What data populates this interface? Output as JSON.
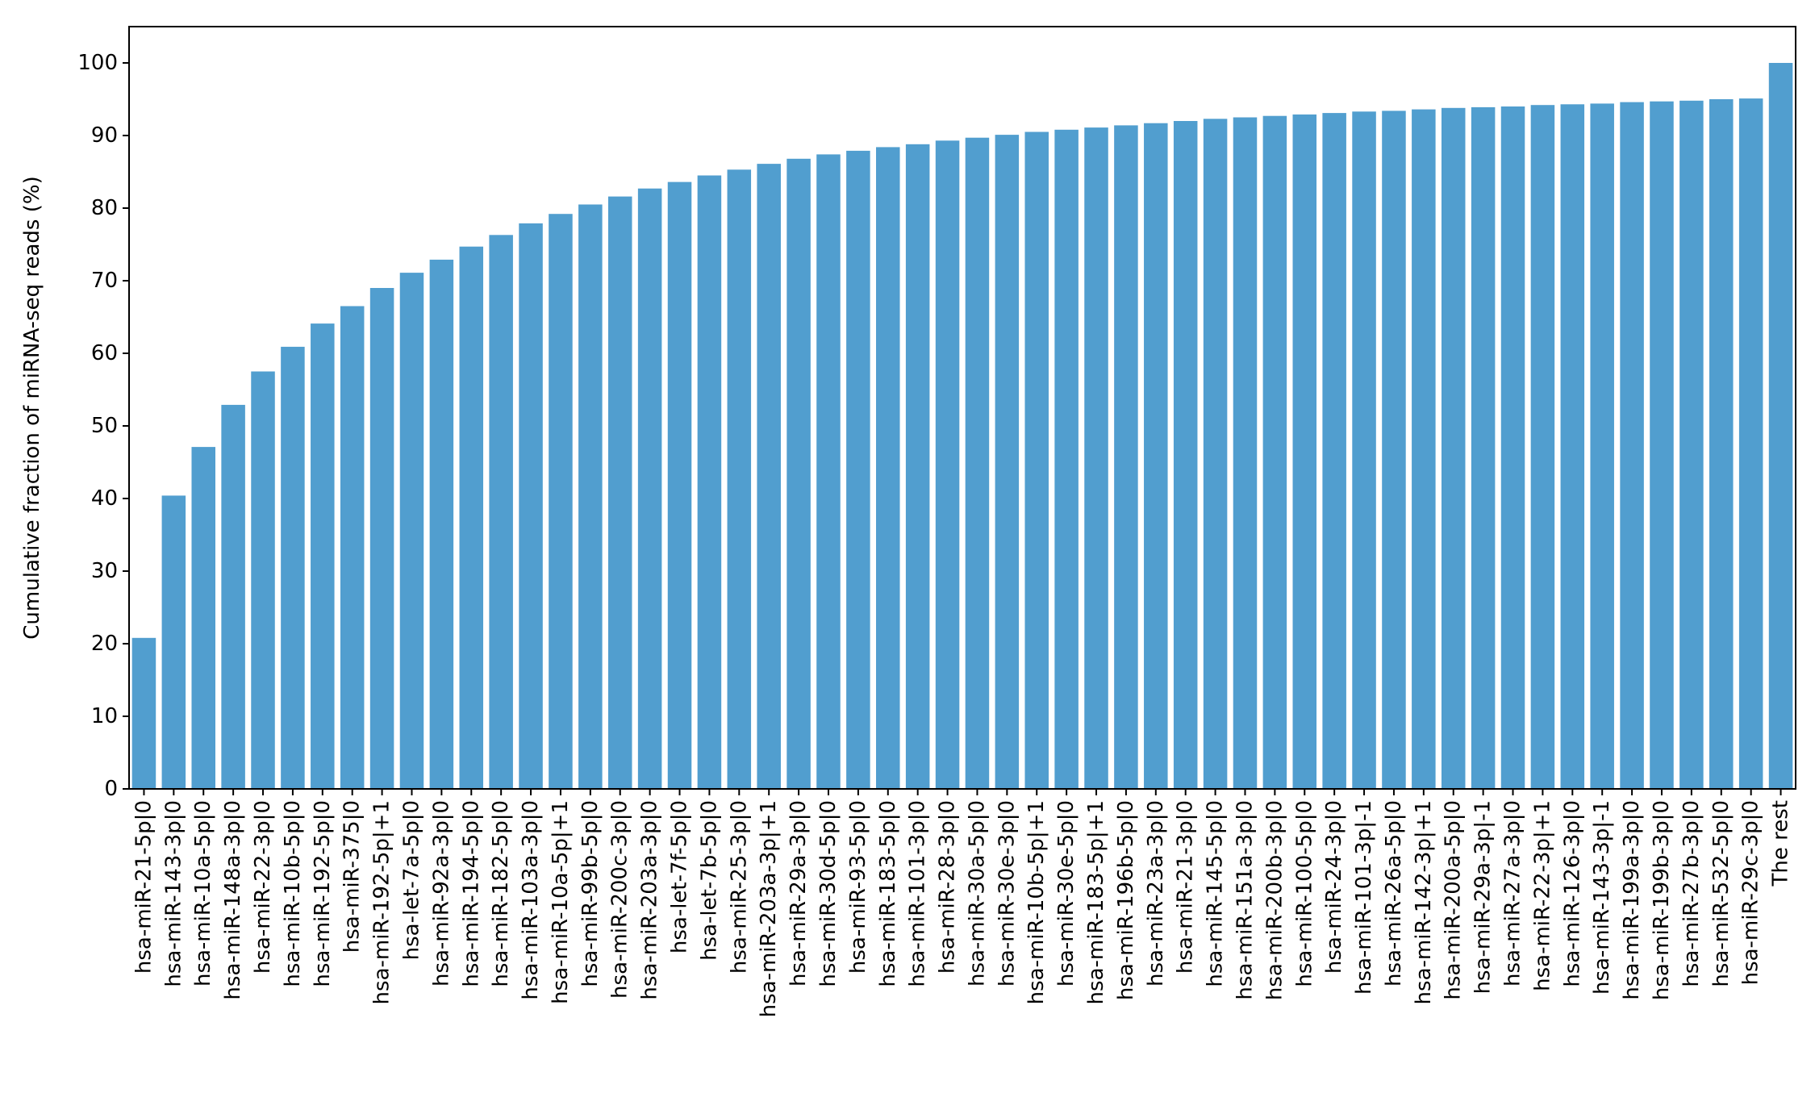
{
  "chart_data": {
    "type": "bar",
    "title": "",
    "xlabel": "",
    "ylabel": "Cumulative fraction of miRNA-seq reads (%)",
    "ylim": [
      0,
      105
    ],
    "yticks": [
      0,
      10,
      20,
      30,
      40,
      50,
      60,
      70,
      80,
      90,
      100
    ],
    "grid": false,
    "bar_color": "#519ecf",
    "categories": [
      "hsa-miR-21-5p|0",
      "hsa-miR-143-3p|0",
      "hsa-miR-10a-5p|0",
      "hsa-miR-148a-3p|0",
      "hsa-miR-22-3p|0",
      "hsa-miR-10b-5p|0",
      "hsa-miR-192-5p|0",
      "hsa-miR-375|0",
      "hsa-miR-192-5p|+1",
      "hsa-let-7a-5p|0",
      "hsa-miR-92a-3p|0",
      "hsa-miR-194-5p|0",
      "hsa-miR-182-5p|0",
      "hsa-miR-103a-3p|0",
      "hsa-miR-10a-5p|+1",
      "hsa-miR-99b-5p|0",
      "hsa-miR-200c-3p|0",
      "hsa-miR-203a-3p|0",
      "hsa-let-7f-5p|0",
      "hsa-let-7b-5p|0",
      "hsa-miR-25-3p|0",
      "hsa-miR-203a-3p|+1",
      "hsa-miR-29a-3p|0",
      "hsa-miR-30d-5p|0",
      "hsa-miR-93-5p|0",
      "hsa-miR-183-5p|0",
      "hsa-miR-101-3p|0",
      "hsa-miR-28-3p|0",
      "hsa-miR-30a-5p|0",
      "hsa-miR-30e-3p|0",
      "hsa-miR-10b-5p|+1",
      "hsa-miR-30e-5p|0",
      "hsa-miR-183-5p|+1",
      "hsa-miR-196b-5p|0",
      "hsa-miR-23a-3p|0",
      "hsa-miR-21-3p|0",
      "hsa-miR-145-5p|0",
      "hsa-miR-151a-3p|0",
      "hsa-miR-200b-3p|0",
      "hsa-miR-100-5p|0",
      "hsa-miR-24-3p|0",
      "hsa-miR-101-3p|-1",
      "hsa-miR-26a-5p|0",
      "hsa-miR-142-3p|+1",
      "hsa-miR-200a-5p|0",
      "hsa-miR-29a-3p|-1",
      "hsa-miR-27a-3p|0",
      "hsa-miR-22-3p|+1",
      "hsa-miR-126-3p|0",
      "hsa-miR-143-3p|-1",
      "hsa-miR-199a-3p|0",
      "hsa-miR-199b-3p|0",
      "hsa-miR-27b-3p|0",
      "hsa-miR-532-5p|0",
      "hsa-miR-29c-3p|0",
      "The rest"
    ],
    "values": [
      20.8,
      40.4,
      47.1,
      52.9,
      57.5,
      60.9,
      64.1,
      66.5,
      69.0,
      71.1,
      72.9,
      74.7,
      76.3,
      77.9,
      79.2,
      80.5,
      81.6,
      82.7,
      83.6,
      84.5,
      85.3,
      86.1,
      86.8,
      87.4,
      87.9,
      88.4,
      88.8,
      89.3,
      89.7,
      90.1,
      90.5,
      90.8,
      91.1,
      91.4,
      91.7,
      92.0,
      92.3,
      92.5,
      92.7,
      92.9,
      93.1,
      93.3,
      93.4,
      93.6,
      93.8,
      93.9,
      94.0,
      94.2,
      94.3,
      94.4,
      94.6,
      94.7,
      94.8,
      95.0,
      95.1,
      100.0
    ]
  }
}
